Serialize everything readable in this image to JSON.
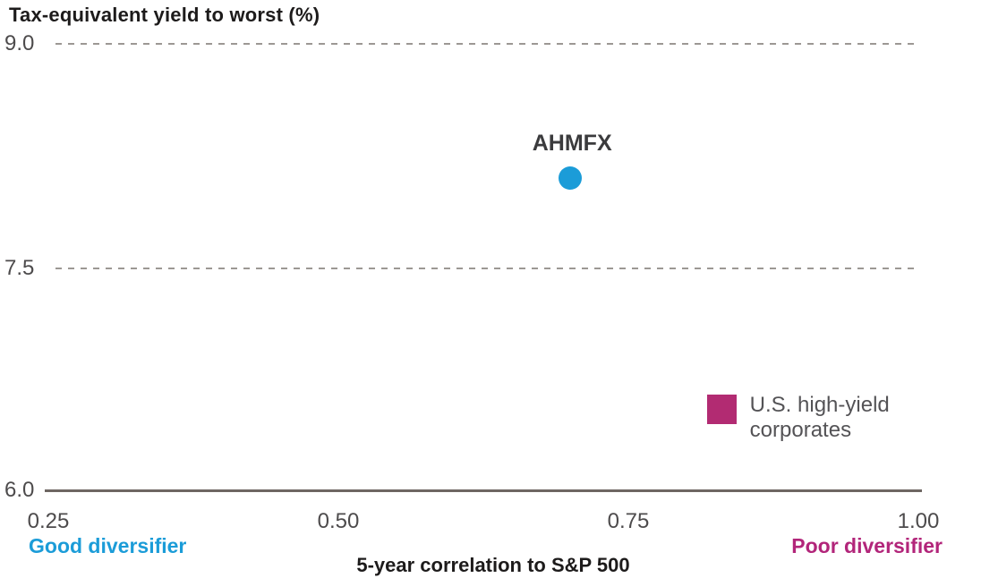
{
  "chart_data": {
    "type": "scatter",
    "title": "Tax-equivalent yield to worst (%)",
    "xlabel": "5-year correlation to S&P 500",
    "ylabel": "Tax-equivalent yield to worst (%)",
    "xlim": [
      0.25,
      1.0
    ],
    "ylim": [
      6.0,
      9.0
    ],
    "x_ticks": [
      0.25,
      0.5,
      0.75,
      1.0
    ],
    "x_tick_labels": [
      "0.25",
      "0.50",
      "0.75",
      "1.00"
    ],
    "y_ticks": [
      9.0,
      7.5,
      6.0
    ],
    "y_tick_labels": [
      "9.0",
      "7.5",
      "6.0"
    ],
    "grid": {
      "horizontal_dashed_at": [
        9.0,
        7.5
      ],
      "solid_baseline_at": 6.0,
      "vertical": false
    },
    "points": [
      {
        "label": "AHMFX",
        "x": 0.7,
        "y": 8.1,
        "marker": "circle",
        "color": "#1B9CD8"
      },
      {
        "label": "U.S. high-yield corporates",
        "label_lines": [
          "U.S. high-yield",
          "corporates"
        ],
        "x": 0.83,
        "y": 6.55,
        "marker": "square",
        "color": "#B22B72"
      }
    ],
    "annotations": [
      {
        "text": "Good diversifier",
        "position": "bottom-left",
        "color": "#1B9CD8"
      },
      {
        "text": "Poor diversifier",
        "position": "bottom-right",
        "color": "#B2257A"
      }
    ]
  }
}
